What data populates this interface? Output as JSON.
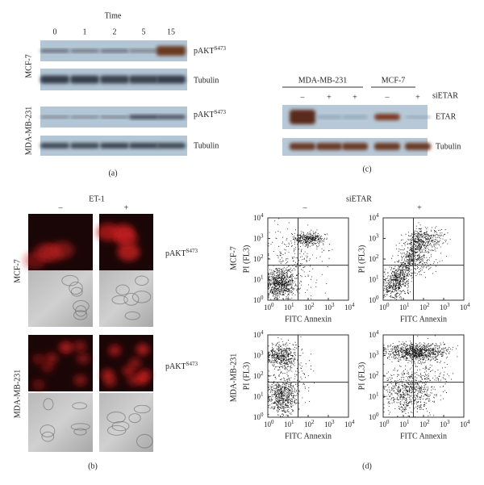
{
  "panel_a": {
    "title": "Time",
    "lanes": [
      "0",
      "1",
      "2",
      "5",
      "15"
    ],
    "rows": [
      {
        "group": "MCF-7",
        "blots": [
          {
            "label": "pAKT",
            "sup": "S473"
          },
          {
            "label": "Tubulin"
          }
        ]
      },
      {
        "group": "MDA-MB-231",
        "blots": [
          {
            "label": "pAKT",
            "sup": "S473"
          },
          {
            "label": "Tubulin"
          }
        ]
      }
    ],
    "caption": "(a)"
  },
  "panel_b": {
    "title": "ET-1",
    "columns": [
      "–",
      "+"
    ],
    "rows": [
      {
        "group": "MCF-7",
        "label": "pAKT",
        "sup": "S473"
      },
      {
        "group": "MDA-MB-231",
        "label": "pAKT",
        "sup": "S473"
      }
    ],
    "caption": "(b)"
  },
  "panel_c": {
    "groups": [
      "MDA-MB-231",
      "MCF-7"
    ],
    "treatment": "siETAR",
    "lanes": [
      "–",
      "+",
      "+",
      "–",
      "+"
    ],
    "blots": [
      "ETAR",
      "Tubulin"
    ],
    "caption": "(c)"
  },
  "panel_d": {
    "title": "siETAR",
    "columns": [
      "–",
      "+"
    ],
    "rows": [
      "MCF-7",
      "MDA-MB-231"
    ],
    "x_label": "FITC Annexin",
    "y_label": "PI (FL3)",
    "tick_base": "10",
    "tick_exponents": [
      "0",
      "1",
      "2",
      "3",
      "4"
    ],
    "caption": "(d)"
  }
}
